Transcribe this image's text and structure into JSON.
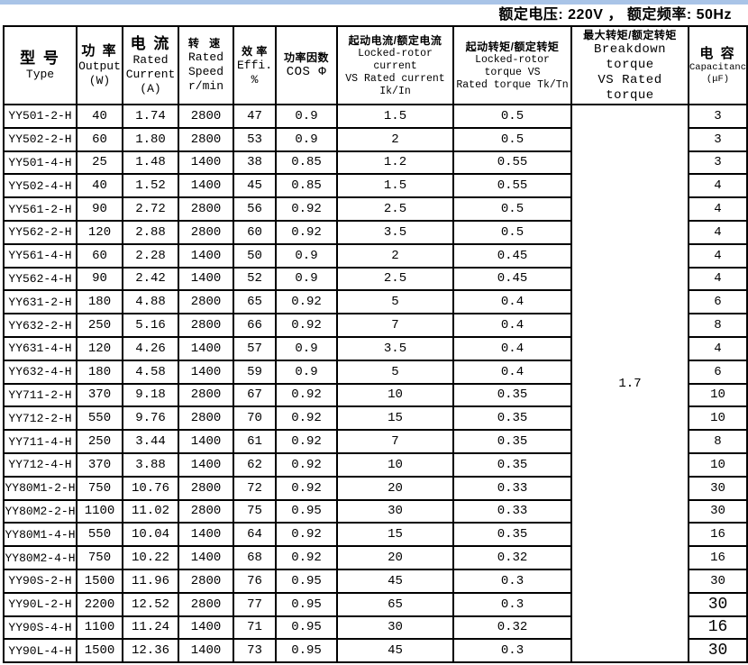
{
  "colors": {
    "top_strip": "#a9c4e7",
    "border": "#000000",
    "background": "#ffffff"
  },
  "page": {
    "rating_note": "额定电压: 220V ， 额定频率: 50Hz"
  },
  "table": {
    "headers": {
      "type_cn": "型 号",
      "type_en": "Type",
      "output_cn": "功 率",
      "output_en": "Output",
      "output_unit": "(W)",
      "current_cn": "电 流",
      "current_en1": "Rated",
      "current_en2": "Current",
      "current_unit": "(A)",
      "speed_cn": "转  速",
      "speed_en1": "Rated",
      "speed_en2": "Speed",
      "speed_unit": "r/min",
      "effi_cn": "效 率",
      "effi_en": "Effi. %",
      "cos_cn": "功率因数",
      "cos_en": "COS Φ",
      "lr_current_cn": "起动电流/额定电流",
      "lr_current_en1": "Locked-rotor current",
      "lr_current_en2": "VS Rated current Ik/In",
      "lr_torque_cn": "起动转矩/额定转矩",
      "lr_torque_en1": "Locked-rotor torque VS",
      "lr_torque_en2": "Rated torque Tk/Tn",
      "bd_torque_cn": "最大转矩/额定转矩",
      "bd_torque_en1": "Breakdown torque",
      "bd_torque_en2": "VS Rated torque",
      "cap_cn": "电 容",
      "cap_en": "Capacitance",
      "cap_unit": "(μF)"
    },
    "breakdown_torque_value": "1.7",
    "rows": [
      {
        "type": "YY501-2-H",
        "output": "40",
        "current": "1.74",
        "speed": "2800",
        "effi": "47",
        "cos": "0.9",
        "ik_in": "1.5",
        "tk_tn": "0.5",
        "cap": "3",
        "cap_large": false
      },
      {
        "type": "YY502-2-H",
        "output": "60",
        "current": "1.80",
        "speed": "2800",
        "effi": "53",
        "cos": "0.9",
        "ik_in": "2",
        "tk_tn": "0.5",
        "cap": "3",
        "cap_large": false
      },
      {
        "type": "YY501-4-H",
        "output": "25",
        "current": "1.48",
        "speed": "1400",
        "effi": "38",
        "cos": "0.85",
        "ik_in": "1.2",
        "tk_tn": "0.55",
        "cap": "3",
        "cap_large": false
      },
      {
        "type": "YY502-4-H",
        "output": "40",
        "current": "1.52",
        "speed": "1400",
        "effi": "45",
        "cos": "0.85",
        "ik_in": "1.5",
        "tk_tn": "0.55",
        "cap": "4",
        "cap_large": false
      },
      {
        "type": "YY561-2-H",
        "output": "90",
        "current": "2.72",
        "speed": "2800",
        "effi": "56",
        "cos": "0.92",
        "ik_in": "2.5",
        "tk_tn": "0.5",
        "cap": "4",
        "cap_large": false
      },
      {
        "type": "YY562-2-H",
        "output": "120",
        "current": "2.88",
        "speed": "2800",
        "effi": "60",
        "cos": "0.92",
        "ik_in": "3.5",
        "tk_tn": "0.5",
        "cap": "4",
        "cap_large": false
      },
      {
        "type": "YY561-4-H",
        "output": "60",
        "current": "2.28",
        "speed": "1400",
        "effi": "50",
        "cos": "0.9",
        "ik_in": "2",
        "tk_tn": "0.45",
        "cap": "4",
        "cap_large": false
      },
      {
        "type": "YY562-4-H",
        "output": "90",
        "current": "2.42",
        "speed": "1400",
        "effi": "52",
        "cos": "0.9",
        "ik_in": "2.5",
        "tk_tn": "0.45",
        "cap": "4",
        "cap_large": false
      },
      {
        "type": "YY631-2-H",
        "output": "180",
        "current": "4.88",
        "speed": "2800",
        "effi": "65",
        "cos": "0.92",
        "ik_in": "5",
        "tk_tn": "0.4",
        "cap": "6",
        "cap_large": false
      },
      {
        "type": "YY632-2-H",
        "output": "250",
        "current": "5.16",
        "speed": "2800",
        "effi": "66",
        "cos": "0.92",
        "ik_in": "7",
        "tk_tn": "0.4",
        "cap": "8",
        "cap_large": false
      },
      {
        "type": "YY631-4-H",
        "output": "120",
        "current": "4.26",
        "speed": "1400",
        "effi": "57",
        "cos": "0.9",
        "ik_in": "3.5",
        "tk_tn": "0.4",
        "cap": "4",
        "cap_large": false
      },
      {
        "type": "YY632-4-H",
        "output": "180",
        "current": "4.58",
        "speed": "1400",
        "effi": "59",
        "cos": "0.9",
        "ik_in": "5",
        "tk_tn": "0.4",
        "cap": "6",
        "cap_large": false
      },
      {
        "type": "YY711-2-H",
        "output": "370",
        "current": "9.18",
        "speed": "2800",
        "effi": "67",
        "cos": "0.92",
        "ik_in": "10",
        "tk_tn": "0.35",
        "cap": "10",
        "cap_large": false
      },
      {
        "type": "YY712-2-H",
        "output": "550",
        "current": "9.76",
        "speed": "2800",
        "effi": "70",
        "cos": "0.92",
        "ik_in": "15",
        "tk_tn": "0.35",
        "cap": "10",
        "cap_large": false
      },
      {
        "type": "YY711-4-H",
        "output": "250",
        "current": "3.44",
        "speed": "1400",
        "effi": "61",
        "cos": "0.92",
        "ik_in": "7",
        "tk_tn": "0.35",
        "cap": "8",
        "cap_large": false
      },
      {
        "type": "YY712-4-H",
        "output": "370",
        "current": "3.88",
        "speed": "1400",
        "effi": "62",
        "cos": "0.92",
        "ik_in": "10",
        "tk_tn": "0.35",
        "cap": "10",
        "cap_large": false
      },
      {
        "type": "YY80M1-2-H",
        "output": "750",
        "current": "10.76",
        "speed": "2800",
        "effi": "72",
        "cos": "0.92",
        "ik_in": "20",
        "tk_tn": "0.33",
        "cap": "30",
        "cap_large": false
      },
      {
        "type": "YY80M2-2-H",
        "output": "1100",
        "current": "11.02",
        "speed": "2800",
        "effi": "75",
        "cos": "0.95",
        "ik_in": "30",
        "tk_tn": "0.33",
        "cap": "30",
        "cap_large": false
      },
      {
        "type": "YY80M1-4-H",
        "output": "550",
        "current": "10.04",
        "speed": "1400",
        "effi": "64",
        "cos": "0.92",
        "ik_in": "15",
        "tk_tn": "0.35",
        "cap": "16",
        "cap_large": false
      },
      {
        "type": "YY80M2-4-H",
        "output": "750",
        "current": "10.22",
        "speed": "1400",
        "effi": "68",
        "cos": "0.92",
        "ik_in": "20",
        "tk_tn": "0.32",
        "cap": "16",
        "cap_large": false
      },
      {
        "type": "YY90S-2-H",
        "output": "1500",
        "current": "11.96",
        "speed": "2800",
        "effi": "76",
        "cos": "0.95",
        "ik_in": "45",
        "tk_tn": "0.3",
        "cap": "30",
        "cap_large": false
      },
      {
        "type": "YY90L-2-H",
        "output": "2200",
        "current": "12.52",
        "speed": "2800",
        "effi": "77",
        "cos": "0.95",
        "ik_in": "65",
        "tk_tn": "0.3",
        "cap": "30",
        "cap_large": true
      },
      {
        "type": "YY90S-4-H",
        "output": "1100",
        "current": "11.24",
        "speed": "1400",
        "effi": "71",
        "cos": "0.95",
        "ik_in": "30",
        "tk_tn": "0.32",
        "cap": "16",
        "cap_large": true
      },
      {
        "type": "YY90L-4-H",
        "output": "1500",
        "current": "12.36",
        "speed": "1400",
        "effi": "73",
        "cos": "0.95",
        "ik_in": "45",
        "tk_tn": "0.3",
        "cap": "30",
        "cap_large": true
      }
    ]
  }
}
